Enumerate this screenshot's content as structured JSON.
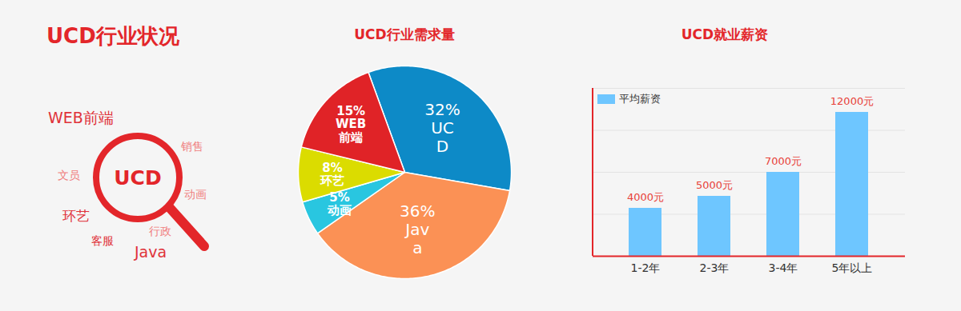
{
  "title": "UCD行业状况",
  "word_cloud": {
    "center": "UCD",
    "words": [
      "WEB前端",
      "销售",
      "文员",
      "动画",
      "环艺",
      "行政",
      "客服",
      "Java"
    ]
  },
  "chart_data": [
    {
      "type": "pie",
      "title": "UCD行业需求量",
      "categories": [
        "UCD",
        "Java",
        "动画",
        "环艺",
        "WEB前端"
      ],
      "values": [
        32,
        36,
        5,
        8,
        15
      ],
      "value_labels": [
        "32%",
        "36%",
        "5%",
        "8%",
        "15%"
      ],
      "colors": [
        "#0d8ac7",
        "#fb9155",
        "#29c6e0",
        "#dbdc00",
        "#e02327"
      ],
      "data_labels": true
    },
    {
      "type": "bar",
      "title": "UCD就业薪资",
      "categories": [
        "1-2年",
        "2-3年",
        "3-4年",
        "5年以上"
      ],
      "series": [
        {
          "name": "平均薪资",
          "color": "#6ec6ff",
          "values": [
            4000,
            5000,
            7000,
            12000
          ],
          "value_labels": [
            "4000元",
            "5000元",
            "7000元",
            "12000元"
          ]
        }
      ],
      "ylim": [
        0,
        14000
      ],
      "yticks": [
        0,
        3500,
        7000,
        10500,
        14000
      ],
      "grid": true,
      "legend": "top-left",
      "data_labels": true,
      "tick_labels": "x"
    }
  ]
}
